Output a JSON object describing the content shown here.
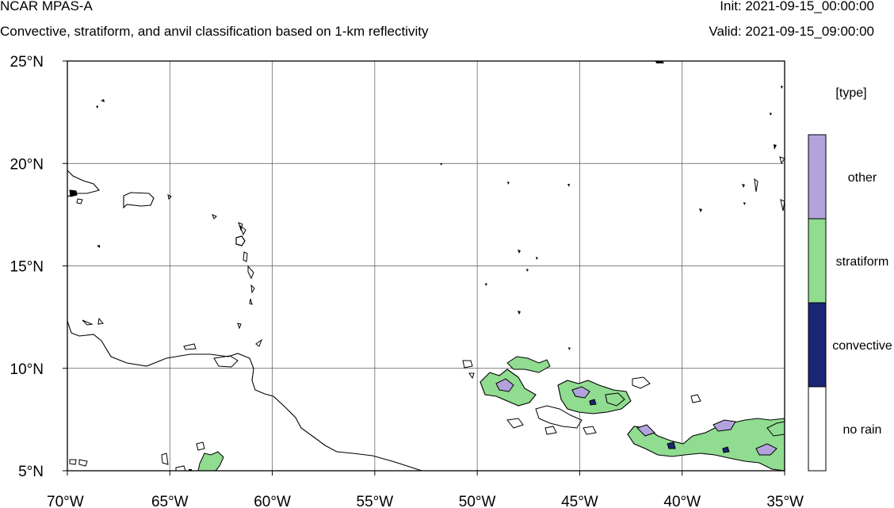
{
  "header": {
    "title": "NCAR MPAS-A",
    "subtitle": "Convective, stratiform, and anvil classification based on 1-km reflectivity",
    "init": "Init: 2021-09-15_00:00:00",
    "valid": "Valid: 2021-09-15_09:00:00"
  },
  "map": {
    "lon_range": [
      -70,
      -35
    ],
    "lat_range": [
      5,
      25
    ],
    "x_ticks": [
      {
        "lon": -70,
        "label": "70°W"
      },
      {
        "lon": -65,
        "label": "65°W"
      },
      {
        "lon": -60,
        "label": "60°W"
      },
      {
        "lon": -55,
        "label": "55°W"
      },
      {
        "lon": -50,
        "label": "50°W"
      },
      {
        "lon": -45,
        "label": "45°W"
      },
      {
        "lon": -40,
        "label": "40°W"
      },
      {
        "lon": -35,
        "label": "35°W"
      }
    ],
    "y_ticks": [
      {
        "lat": 5,
        "label": "5°N"
      },
      {
        "lat": 10,
        "label": "10°N"
      },
      {
        "lat": 15,
        "label": "15°N"
      },
      {
        "lat": 20,
        "label": "20°N"
      },
      {
        "lat": 25,
        "label": "25°N"
      }
    ],
    "gridlines": true,
    "coastline_color": "#000000"
  },
  "legend": {
    "title": "[type]",
    "placement": "right",
    "categories": [
      {
        "label": "other",
        "color": "#b3a3dc"
      },
      {
        "label": "stratiform",
        "color": "#90dc90"
      },
      {
        "label": "convective",
        "color": "#1a2575"
      },
      {
        "label": "no rain",
        "color": "#ffffff"
      }
    ]
  }
}
